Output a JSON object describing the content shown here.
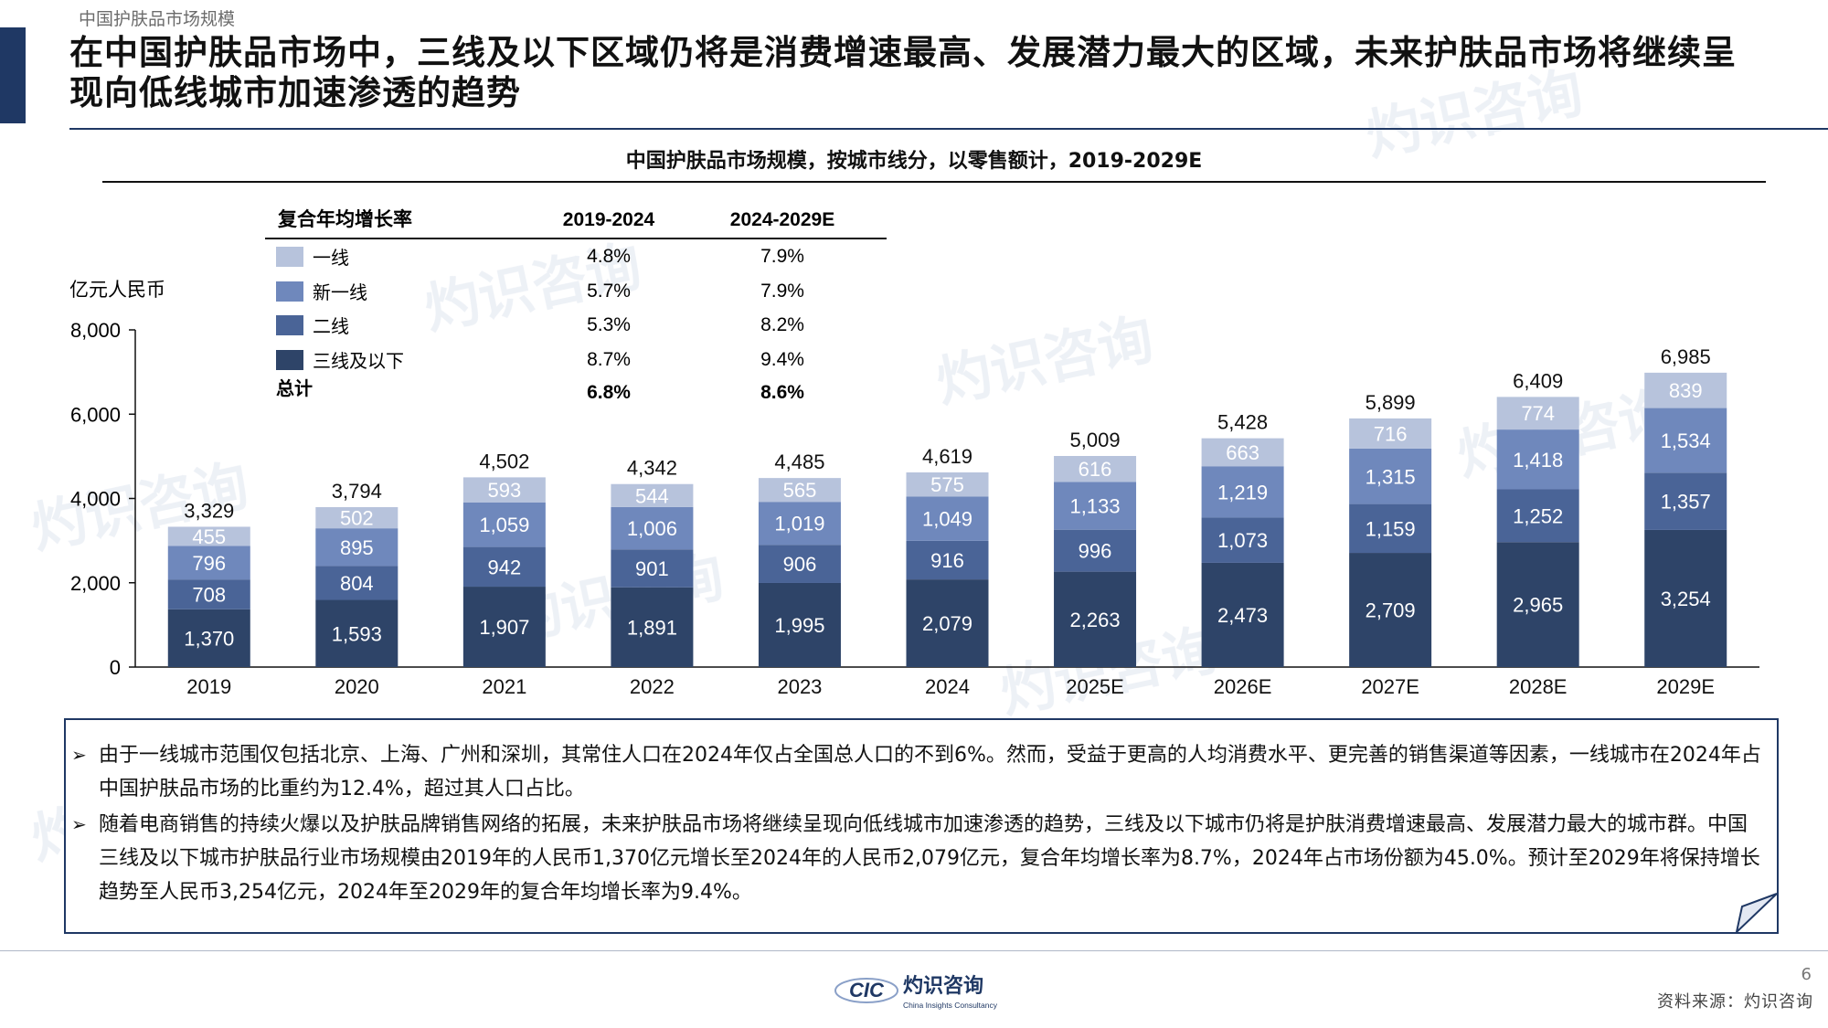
{
  "header": {
    "breadcrumb": "中国护肤品市场规模",
    "title": "在中国护肤品市场中，三线及以下区域仍将是消费增速最高、发展潜力最大的区域，未来护肤品市场将继续呈现向低线城市加速渗透的趋势"
  },
  "chart": {
    "title": "中国护肤品市场规模，按城市线分，以零售额计，2019-2029E",
    "ylabel": "亿元人民币"
  },
  "cagr_table": {
    "header": "复合年均增长率",
    "col1": "2019-2024",
    "col2": "2024-2029E",
    "rows": [
      {
        "label": "一线",
        "c1": "4.8%",
        "c2": "7.9%"
      },
      {
        "label": "新一线",
        "c1": "5.7%",
        "c2": "7.9%"
      },
      {
        "label": "二线",
        "c1": "5.3%",
        "c2": "8.2%"
      },
      {
        "label": "三线及以下",
        "c1": "8.7%",
        "c2": "9.4%"
      }
    ],
    "total": {
      "label": "总计",
      "c1": "6.8%",
      "c2": "8.6%"
    }
  },
  "chart_data": {
    "type": "bar",
    "stacked": true,
    "categories": [
      "2019",
      "2020",
      "2021",
      "2022",
      "2023",
      "2024",
      "2025E",
      "2026E",
      "2027E",
      "2028E",
      "2029E"
    ],
    "series": [
      {
        "name": "三线及以下",
        "color": "#2e4468",
        "values": [
          1370,
          1593,
          1907,
          1891,
          1995,
          2079,
          2263,
          2473,
          2709,
          2965,
          3254
        ]
      },
      {
        "name": "二线",
        "color": "#4a6497",
        "values": [
          708,
          804,
          942,
          901,
          906,
          916,
          996,
          1073,
          1159,
          1252,
          1357
        ]
      },
      {
        "name": "新一线",
        "color": "#6f88bc",
        "values": [
          796,
          895,
          1059,
          1006,
          1019,
          1049,
          1133,
          1219,
          1315,
          1418,
          1534
        ]
      },
      {
        "name": "一线",
        "color": "#b7c3dc",
        "values": [
          455,
          502,
          593,
          544,
          565,
          575,
          616,
          663,
          716,
          774,
          839
        ]
      }
    ],
    "totals": [
      3329,
      3794,
      4502,
      4342,
      4485,
      4619,
      5009,
      5428,
      5899,
      6409,
      6985
    ],
    "yticks": [
      0,
      2000,
      4000,
      6000,
      8000
    ],
    "ytick_labels": [
      "0",
      "2,000",
      "4,000",
      "6,000",
      "8,000"
    ],
    "ylim": [
      0,
      8000
    ],
    "ylabel": "亿元人民币",
    "xlabel": "",
    "grid": false
  },
  "notes": {
    "bullet": "➢",
    "n1": "由于一线城市范围仅包括北京、上海、广州和深圳，其常住人口在2024年仅占全国总人口的不到6%。然而，受益于更高的人均消费水平、更完善的销售渠道等因素，一线城市在2024年占中国护肤品市场的比重约为12.4%，超过其人口占比。",
    "n2": "随着电商销售的持续火爆以及护肤品牌销售网络的拓展，未来护肤品市场将继续呈现向低线城市加速渗透的趋势，三线及以下城市仍将是护肤消费增速最高、发展潜力最大的城市群。中国三线及以下城市护肤品行业市场规模由2019年的人民币1,370亿元增长至2024年的人民币2,079亿元，复合年均增长率为8.7%，2024年占市场份额为45.0%。预计至2029年将保持增长趋势至人民币3,254亿元，2024年至2029年的复合年均增长率为9.4%。"
  },
  "footer": {
    "page_number": "6",
    "source": "资料来源：灼识咨询",
    "logo_mark": "CIC",
    "logo_cn": "灼识咨询",
    "logo_en": "China Insights Consultancy"
  },
  "colors": {
    "navy": "#1f3864",
    "tier1": "#b7c3dc",
    "new_tier1": "#6f88bc",
    "tier2": "#4a6497",
    "tier3_below": "#2e4468"
  }
}
